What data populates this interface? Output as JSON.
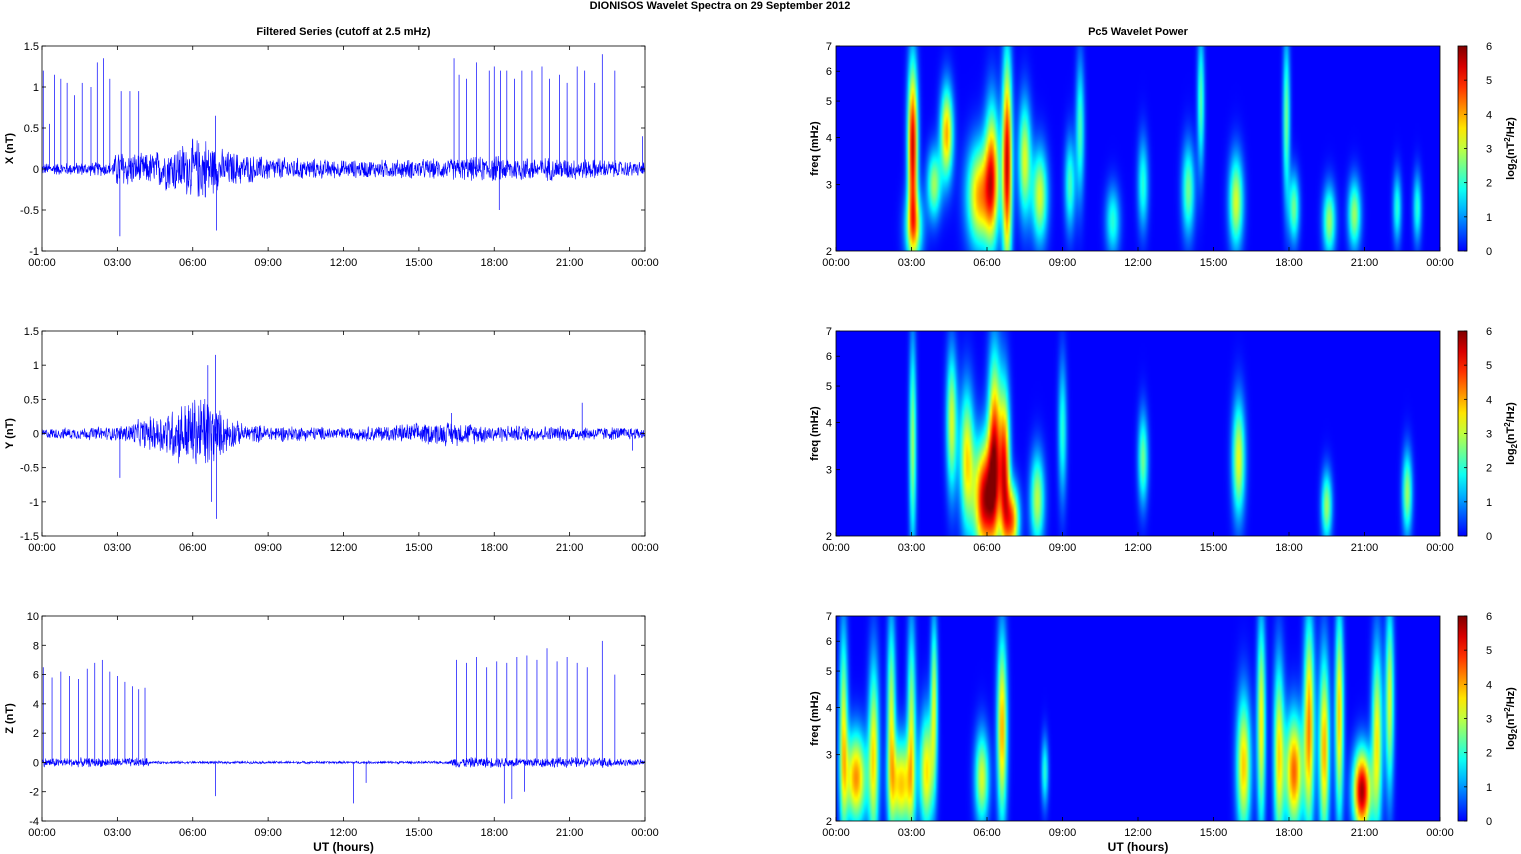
{
  "figure_title": "DIONISOS Wavelet Spectra on 29 September 2012",
  "colors": {
    "trace": "#0000ff",
    "axis": "#000000",
    "background": "#ffffff"
  },
  "chart_data": [
    {
      "type": "line",
      "panel": "X",
      "title": "Filtered Series (cutoff at 2.5 mHz)",
      "xlabel": "",
      "ylabel": "X (nT)",
      "x_ticks": [
        "00:00",
        "03:00",
        "06:00",
        "09:00",
        "12:00",
        "15:00",
        "18:00",
        "21:00",
        "00:00"
      ],
      "y_ticks": [
        "-1",
        "-0.5",
        "0",
        "0.5",
        "1",
        "1.5"
      ],
      "xlim": [
        0,
        24
      ],
      "ylim": [
        -1,
        1.5
      ],
      "noise_envelope": [
        {
          "x": 0,
          "amp": 0.08
        },
        {
          "x": 2.8,
          "amp": 0.1
        },
        {
          "x": 3.0,
          "amp": 0.28
        },
        {
          "x": 4.0,
          "amp": 0.2
        },
        {
          "x": 5.0,
          "amp": 0.3
        },
        {
          "x": 6.5,
          "amp": 0.45
        },
        {
          "x": 7.0,
          "amp": 0.28
        },
        {
          "x": 8.5,
          "amp": 0.18
        },
        {
          "x": 12,
          "amp": 0.12
        },
        {
          "x": 16,
          "amp": 0.14
        },
        {
          "x": 18,
          "amp": 0.18
        },
        {
          "x": 21,
          "amp": 0.15
        },
        {
          "x": 24,
          "amp": 0.1
        }
      ],
      "spikes": [
        {
          "x": 0.05,
          "y": 1.2
        },
        {
          "x": 0.3,
          "y": 0.55
        },
        {
          "x": 0.5,
          "y": 1.15
        },
        {
          "x": 0.75,
          "y": 1.1
        },
        {
          "x": 1.0,
          "y": 1.05
        },
        {
          "x": 1.3,
          "y": 0.9
        },
        {
          "x": 1.6,
          "y": 1.05
        },
        {
          "x": 1.95,
          "y": 1.0
        },
        {
          "x": 2.2,
          "y": 1.3
        },
        {
          "x": 2.45,
          "y": 1.35
        },
        {
          "x": 2.7,
          "y": 1.1
        },
        {
          "x": 3.1,
          "y": -0.82
        },
        {
          "x": 3.15,
          "y": 0.95
        },
        {
          "x": 3.5,
          "y": 0.95
        },
        {
          "x": 3.85,
          "y": 0.95
        },
        {
          "x": 6.9,
          "y": 0.65
        },
        {
          "x": 6.95,
          "y": -0.75
        },
        {
          "x": 16.4,
          "y": 1.35
        },
        {
          "x": 16.6,
          "y": 1.15
        },
        {
          "x": 16.9,
          "y": 1.1
        },
        {
          "x": 17.3,
          "y": 1.3
        },
        {
          "x": 17.8,
          "y": 1.2
        },
        {
          "x": 18.0,
          "y": 1.25
        },
        {
          "x": 18.25,
          "y": 1.2
        },
        {
          "x": 18.5,
          "y": 1.2
        },
        {
          "x": 18.8,
          "y": 1.1
        },
        {
          "x": 19.1,
          "y": 1.2
        },
        {
          "x": 19.5,
          "y": 1.2
        },
        {
          "x": 19.9,
          "y": 1.25
        },
        {
          "x": 20.2,
          "y": 1.1
        },
        {
          "x": 20.6,
          "y": 1.15
        },
        {
          "x": 20.9,
          "y": 1.05
        },
        {
          "x": 21.3,
          "y": 1.25
        },
        {
          "x": 21.6,
          "y": 1.2
        },
        {
          "x": 22.0,
          "y": 1.05
        },
        {
          "x": 22.3,
          "y": 1.4
        },
        {
          "x": 22.8,
          "y": 1.2
        },
        {
          "x": 23.9,
          "y": 0.4
        },
        {
          "x": 18.2,
          "y": -0.5
        }
      ]
    },
    {
      "type": "line",
      "panel": "Y",
      "title": "",
      "xlabel": "",
      "ylabel": "Y (nT)",
      "x_ticks": [
        "00:00",
        "03:00",
        "06:00",
        "09:00",
        "12:00",
        "15:00",
        "18:00",
        "21:00",
        "00:00"
      ],
      "y_ticks": [
        "-1.5",
        "-1",
        "-0.5",
        "0",
        "0.5",
        "1",
        "1.5"
      ],
      "xlim": [
        0,
        24
      ],
      "ylim": [
        -1.5,
        1.5
      ],
      "noise_envelope": [
        {
          "x": 0,
          "amp": 0.08
        },
        {
          "x": 3.0,
          "amp": 0.12
        },
        {
          "x": 4.5,
          "amp": 0.3
        },
        {
          "x": 5.5,
          "amp": 0.5
        },
        {
          "x": 6.5,
          "amp": 0.7
        },
        {
          "x": 7.0,
          "amp": 0.4
        },
        {
          "x": 8.0,
          "amp": 0.15
        },
        {
          "x": 12,
          "amp": 0.1
        },
        {
          "x": 16.3,
          "amp": 0.2
        },
        {
          "x": 18,
          "amp": 0.14
        },
        {
          "x": 21,
          "amp": 0.12
        },
        {
          "x": 24,
          "amp": 0.1
        }
      ],
      "spikes": [
        {
          "x": 3.1,
          "y": -0.65
        },
        {
          "x": 6.6,
          "y": 1.0
        },
        {
          "x": 6.75,
          "y": -1.0
        },
        {
          "x": 6.9,
          "y": 1.15
        },
        {
          "x": 6.95,
          "y": -1.25
        },
        {
          "x": 16.3,
          "y": 0.3
        },
        {
          "x": 21.5,
          "y": 0.45
        },
        {
          "x": 23.5,
          "y": -0.25
        }
      ]
    },
    {
      "type": "line",
      "panel": "Z",
      "title": "",
      "xlabel": "UT (hours)",
      "ylabel": "Z (nT)",
      "x_ticks": [
        "00:00",
        "03:00",
        "06:00",
        "09:00",
        "12:00",
        "15:00",
        "18:00",
        "21:00",
        "00:00"
      ],
      "y_ticks": [
        "-4",
        "-2",
        "0",
        "2",
        "4",
        "6",
        "8",
        "10"
      ],
      "xlim": [
        0,
        24
      ],
      "ylim": [
        -4,
        10
      ],
      "noise_envelope": [
        {
          "x": 0,
          "amp": 0.35
        },
        {
          "x": 4.2,
          "amp": 0.35
        },
        {
          "x": 4.3,
          "amp": 0.1
        },
        {
          "x": 16.2,
          "amp": 0.1
        },
        {
          "x": 16.4,
          "amp": 0.4
        },
        {
          "x": 22.5,
          "amp": 0.4
        },
        {
          "x": 24,
          "amp": 0.2
        }
      ],
      "spikes": [
        {
          "x": 0.05,
          "y": 6.5
        },
        {
          "x": 0.4,
          "y": 5.8
        },
        {
          "x": 0.75,
          "y": 6.2
        },
        {
          "x": 1.1,
          "y": 5.9
        },
        {
          "x": 1.45,
          "y": 5.7
        },
        {
          "x": 1.8,
          "y": 6.4
        },
        {
          "x": 2.1,
          "y": 6.8
        },
        {
          "x": 2.4,
          "y": 7.0
        },
        {
          "x": 2.7,
          "y": 6.2
        },
        {
          "x": 3.0,
          "y": 5.9
        },
        {
          "x": 3.3,
          "y": 5.5
        },
        {
          "x": 3.6,
          "y": 5.2
        },
        {
          "x": 3.85,
          "y": 5.0
        },
        {
          "x": 4.1,
          "y": 5.1
        },
        {
          "x": 6.9,
          "y": -2.3
        },
        {
          "x": 12.4,
          "y": -2.8
        },
        {
          "x": 12.9,
          "y": -1.4
        },
        {
          "x": 16.5,
          "y": 7.0
        },
        {
          "x": 16.9,
          "y": 6.8
        },
        {
          "x": 17.3,
          "y": 7.2
        },
        {
          "x": 17.7,
          "y": 6.5
        },
        {
          "x": 18.1,
          "y": 6.9
        },
        {
          "x": 18.4,
          "y": -2.8
        },
        {
          "x": 18.5,
          "y": 6.8
        },
        {
          "x": 18.7,
          "y": -2.5
        },
        {
          "x": 18.9,
          "y": 7.2
        },
        {
          "x": 19.2,
          "y": -2.0
        },
        {
          "x": 19.3,
          "y": 7.3
        },
        {
          "x": 19.7,
          "y": 7.0
        },
        {
          "x": 20.1,
          "y": 7.8
        },
        {
          "x": 20.5,
          "y": 6.9
        },
        {
          "x": 20.9,
          "y": 7.2
        },
        {
          "x": 21.3,
          "y": 6.8
        },
        {
          "x": 21.7,
          "y": 6.5
        },
        {
          "x": 22.3,
          "y": 8.3
        },
        {
          "x": 22.8,
          "y": 6.0
        }
      ]
    },
    {
      "type": "heatmap",
      "panel": "X",
      "title": "Pc5 Wavelet Power",
      "xlabel": "",
      "ylabel": "freq (mHz)",
      "x_ticks": [
        "00:00",
        "03:00",
        "06:00",
        "09:00",
        "12:00",
        "15:00",
        "18:00",
        "21:00",
        "00:00"
      ],
      "y_ticks": [
        "2",
        "3",
        "4",
        "5",
        "6",
        "7"
      ],
      "ylim": [
        2,
        7
      ],
      "y_scale": "log",
      "colorbar": {
        "label_main": "log",
        "label_sub": "2",
        "label_rest1": "(nT",
        "label_sup": "2",
        "label_rest2": "/Hz)",
        "ticks": [
          "0",
          "1",
          "2",
          "3",
          "4",
          "5",
          "6"
        ],
        "range": [
          0,
          6
        ]
      },
      "blobs": [
        {
          "t": 3.05,
          "f": 3.8,
          "amp": 5.5,
          "dt": 0.14,
          "df": 0.35
        },
        {
          "t": 3.1,
          "f": 2.3,
          "amp": 3.0,
          "dt": 0.25,
          "df": 0.15
        },
        {
          "t": 4.4,
          "f": 4.1,
          "amp": 4.0,
          "dt": 0.18,
          "df": 0.2
        },
        {
          "t": 3.9,
          "f": 3.0,
          "amp": 2.8,
          "dt": 0.2,
          "df": 0.15
        },
        {
          "t": 5.7,
          "f": 2.8,
          "amp": 4.0,
          "dt": 0.35,
          "df": 0.22
        },
        {
          "t": 6.2,
          "f": 3.2,
          "amp": 4.2,
          "dt": 0.2,
          "df": 0.3
        },
        {
          "t": 6.8,
          "f": 3.4,
          "amp": 5.5,
          "dt": 0.14,
          "df": 0.45
        },
        {
          "t": 7.5,
          "f": 3.5,
          "amp": 3.2,
          "dt": 0.18,
          "df": 0.25
        },
        {
          "t": 8.1,
          "f": 2.8,
          "amp": 3.2,
          "dt": 0.22,
          "df": 0.2
        },
        {
          "t": 9.3,
          "f": 3.0,
          "amp": 2.2,
          "dt": 0.15,
          "df": 0.2
        },
        {
          "t": 9.7,
          "f": 4.2,
          "amp": 2.2,
          "dt": 0.12,
          "df": 0.3
        },
        {
          "t": 11.0,
          "f": 2.4,
          "amp": 2.0,
          "dt": 0.2,
          "df": 0.15
        },
        {
          "t": 12.2,
          "f": 3.0,
          "amp": 2.0,
          "dt": 0.15,
          "df": 0.2
        },
        {
          "t": 14.0,
          "f": 2.9,
          "amp": 2.5,
          "dt": 0.18,
          "df": 0.2
        },
        {
          "t": 14.5,
          "f": 5.0,
          "amp": 2.3,
          "dt": 0.1,
          "df": 0.3
        },
        {
          "t": 15.9,
          "f": 2.7,
          "amp": 3.2,
          "dt": 0.2,
          "df": 0.2
        },
        {
          "t": 17.9,
          "f": 4.5,
          "amp": 2.5,
          "dt": 0.1,
          "df": 0.35
        },
        {
          "t": 18.2,
          "f": 2.6,
          "amp": 2.5,
          "dt": 0.15,
          "df": 0.15
        },
        {
          "t": 19.6,
          "f": 2.4,
          "amp": 2.8,
          "dt": 0.18,
          "df": 0.15
        },
        {
          "t": 20.6,
          "f": 2.5,
          "amp": 2.8,
          "dt": 0.18,
          "df": 0.15
        },
        {
          "t": 22.3,
          "f": 2.6,
          "amp": 2.0,
          "dt": 0.12,
          "df": 0.15
        },
        {
          "t": 23.1,
          "f": 2.6,
          "amp": 2.0,
          "dt": 0.12,
          "df": 0.15
        }
      ]
    },
    {
      "type": "heatmap",
      "panel": "Y",
      "title": "",
      "xlabel": "",
      "ylabel": "freq (mHz)",
      "x_ticks": [
        "00:00",
        "03:00",
        "06:00",
        "09:00",
        "12:00",
        "15:00",
        "18:00",
        "21:00",
        "00:00"
      ],
      "y_ticks": [
        "2",
        "3",
        "4",
        "5",
        "6",
        "7"
      ],
      "ylim": [
        2,
        7
      ],
      "y_scale": "log",
      "colorbar": {
        "label_main": "log",
        "label_sub": "2",
        "label_rest1": "(nT",
        "label_sup": "2",
        "label_rest2": "/Hz)",
        "ticks": [
          "0",
          "1",
          "2",
          "3",
          "4",
          "5",
          "6"
        ],
        "range": [
          0,
          6
        ]
      },
      "blobs": [
        {
          "t": 3.05,
          "f": 3.5,
          "amp": 2.8,
          "dt": 0.1,
          "df": 0.45
        },
        {
          "t": 4.6,
          "f": 4.0,
          "amp": 3.2,
          "dt": 0.15,
          "df": 0.3
        },
        {
          "t": 5.2,
          "f": 3.2,
          "amp": 3.5,
          "dt": 0.2,
          "df": 0.3
        },
        {
          "t": 5.9,
          "f": 2.5,
          "amp": 5.5,
          "dt": 0.3,
          "df": 0.25
        },
        {
          "t": 6.3,
          "f": 3.4,
          "amp": 4.8,
          "dt": 0.18,
          "df": 0.4
        },
        {
          "t": 6.7,
          "f": 3.0,
          "amp": 4.8,
          "dt": 0.15,
          "df": 0.35
        },
        {
          "t": 7.0,
          "f": 2.2,
          "amp": 4.2,
          "dt": 0.2,
          "df": 0.15
        },
        {
          "t": 8.0,
          "f": 2.5,
          "amp": 3.0,
          "dt": 0.2,
          "df": 0.2
        },
        {
          "t": 9.0,
          "f": 3.8,
          "amp": 2.0,
          "dt": 0.12,
          "df": 0.3
        },
        {
          "t": 12.2,
          "f": 3.2,
          "amp": 2.5,
          "dt": 0.14,
          "df": 0.2
        },
        {
          "t": 16.0,
          "f": 3.2,
          "amp": 3.3,
          "dt": 0.18,
          "df": 0.25
        },
        {
          "t": 19.5,
          "f": 2.4,
          "amp": 2.8,
          "dt": 0.15,
          "df": 0.15
        },
        {
          "t": 22.7,
          "f": 2.6,
          "amp": 2.8,
          "dt": 0.14,
          "df": 0.18
        }
      ]
    },
    {
      "type": "heatmap",
      "panel": "Z",
      "title": "",
      "xlabel": "UT (hours)",
      "ylabel": "freq (mHz)",
      "x_ticks": [
        "00:00",
        "03:00",
        "06:00",
        "09:00",
        "12:00",
        "15:00",
        "18:00",
        "21:00",
        "00:00"
      ],
      "y_ticks": [
        "2",
        "3",
        "4",
        "5",
        "6",
        "7"
      ],
      "ylim": [
        2,
        7
      ],
      "y_scale": "log",
      "colorbar": {
        "label_main": "log",
        "label_sub": "2",
        "label_rest1": "(nT",
        "label_sup": "2",
        "label_rest2": "/Hz)",
        "ticks": [
          "0",
          "1",
          "2",
          "3",
          "4",
          "5",
          "6"
        ],
        "range": [
          0,
          6
        ]
      },
      "blobs": [
        {
          "t": 0.8,
          "f": 2.6,
          "amp": 4.2,
          "dt": 0.3,
          "df": 0.2
        },
        {
          "t": 0.3,
          "f": 3.4,
          "amp": 3.3,
          "dt": 0.12,
          "df": 0.45
        },
        {
          "t": 1.5,
          "f": 3.0,
          "amp": 3.5,
          "dt": 0.15,
          "df": 0.4
        },
        {
          "t": 2.2,
          "f": 3.6,
          "amp": 3.2,
          "dt": 0.12,
          "df": 0.45
        },
        {
          "t": 2.6,
          "f": 2.5,
          "amp": 3.8,
          "dt": 0.3,
          "df": 0.2
        },
        {
          "t": 3.0,
          "f": 3.5,
          "amp": 3.0,
          "dt": 0.12,
          "df": 0.45
        },
        {
          "t": 3.6,
          "f": 2.7,
          "amp": 3.6,
          "dt": 0.2,
          "df": 0.25
        },
        {
          "t": 3.9,
          "f": 4.2,
          "amp": 3.0,
          "dt": 0.1,
          "df": 0.35
        },
        {
          "t": 5.8,
          "f": 2.6,
          "amp": 3.2,
          "dt": 0.2,
          "df": 0.2
        },
        {
          "t": 6.6,
          "f": 3.5,
          "amp": 4.0,
          "dt": 0.14,
          "df": 0.4
        },
        {
          "t": 8.3,
          "f": 2.7,
          "amp": 2.0,
          "dt": 0.1,
          "df": 0.15
        },
        {
          "t": 16.2,
          "f": 2.8,
          "amp": 3.8,
          "dt": 0.2,
          "df": 0.3
        },
        {
          "t": 16.9,
          "f": 3.6,
          "amp": 3.5,
          "dt": 0.12,
          "df": 0.45
        },
        {
          "t": 17.6,
          "f": 3.0,
          "amp": 3.5,
          "dt": 0.15,
          "df": 0.4
        },
        {
          "t": 18.2,
          "f": 2.7,
          "amp": 4.5,
          "dt": 0.25,
          "df": 0.25
        },
        {
          "t": 18.8,
          "f": 3.6,
          "amp": 4.2,
          "dt": 0.15,
          "df": 0.45
        },
        {
          "t": 19.4,
          "f": 3.1,
          "amp": 4.0,
          "dt": 0.15,
          "df": 0.4
        },
        {
          "t": 20.0,
          "f": 3.8,
          "amp": 3.8,
          "dt": 0.12,
          "df": 0.45
        },
        {
          "t": 20.9,
          "f": 2.4,
          "amp": 5.8,
          "dt": 0.25,
          "df": 0.18
        },
        {
          "t": 21.5,
          "f": 3.3,
          "amp": 3.5,
          "dt": 0.15,
          "df": 0.4
        },
        {
          "t": 22.0,
          "f": 4.2,
          "amp": 3.2,
          "dt": 0.12,
          "df": 0.4
        }
      ]
    }
  ]
}
